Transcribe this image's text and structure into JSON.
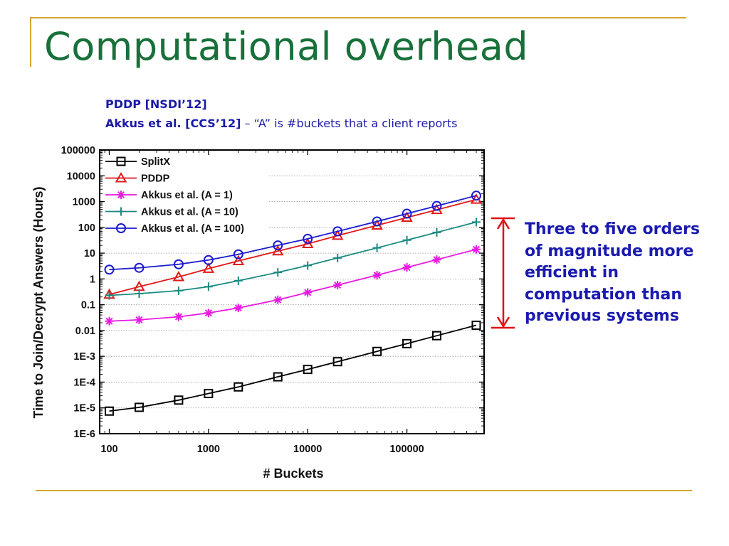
{
  "slide": {
    "title": "Computational overhead",
    "ref1": {
      "name": "PDDP [NSDI’12]"
    },
    "ref2": {
      "name": "Akkus et al. [CCS’12]",
      "note": " – “A” is #buckets that a client reports"
    },
    "callout": {
      "lines": [
        "Three to five orders",
        "of magnitude more",
        "efficient in",
        "computation than",
        "previous systems"
      ]
    }
  },
  "colors": {
    "title": "#18703a",
    "frame": "#d6a72e",
    "text_blue": "#1a1aa6",
    "arrow": "#e01010"
  },
  "chart_data": {
    "type": "line",
    "xlabel": "# Buckets",
    "ylabel": "Time to Join/Decrypt Answers (Hours)",
    "x_scale": "log",
    "y_scale": "log",
    "xlim": [
      80,
      600000
    ],
    "ylim": [
      1e-06,
      100000
    ],
    "x_ticks": [
      {
        "value": 100,
        "label": "100"
      },
      {
        "value": 1000,
        "label": "1000"
      },
      {
        "value": 10000,
        "label": "10000"
      },
      {
        "value": 100000,
        "label": "100000"
      }
    ],
    "y_ticks": [
      {
        "value": 100000,
        "label": "100000"
      },
      {
        "value": 10000,
        "label": "10000"
      },
      {
        "value": 1000,
        "label": "1000"
      },
      {
        "value": 100,
        "label": "100"
      },
      {
        "value": 10,
        "label": "10"
      },
      {
        "value": 1,
        "label": "1"
      },
      {
        "value": 0.1,
        "label": "0.1"
      },
      {
        "value": 0.01,
        "label": "0.01"
      },
      {
        "value": 0.001,
        "label": "1E-3"
      },
      {
        "value": 0.0001,
        "label": "1E-4"
      },
      {
        "value": 1e-05,
        "label": "1E-5"
      },
      {
        "value": 1e-06,
        "label": "1E-6"
      }
    ],
    "grid": "horizontal dotted",
    "legend_position": "top-left",
    "x": [
      100,
      200,
      500,
      1000,
      2000,
      5000,
      10000,
      20000,
      50000,
      100000,
      200000,
      500000
    ],
    "series": [
      {
        "name": "SplitX",
        "color": "#000000",
        "marker": "square",
        "values": [
          7.5e-06,
          1.05e-05,
          2e-05,
          3.6e-05,
          6.5e-05,
          0.00016,
          0.00031,
          0.00062,
          0.00155,
          0.0031,
          0.0063,
          0.016
        ]
      },
      {
        "name": "PDDP",
        "color": "#e01a1a",
        "marker": "triangle",
        "values": [
          0.25,
          0.5,
          1.2,
          2.5,
          5,
          12,
          23,
          48,
          120,
          240,
          480,
          1200
        ]
      },
      {
        "name": "Akkus et al. (A = 1)",
        "color": "#e81ae0",
        "marker": "asterisk",
        "values": [
          0.023,
          0.026,
          0.034,
          0.048,
          0.075,
          0.155,
          0.3,
          0.58,
          1.4,
          2.8,
          5.6,
          14
        ]
      },
      {
        "name": "Akkus et al. (A = 10)",
        "color": "#1a8a80",
        "marker": "plus",
        "values": [
          0.23,
          0.27,
          0.35,
          0.5,
          0.85,
          1.8,
          3.3,
          6.5,
          16,
          32,
          64,
          160
        ]
      },
      {
        "name": "Akkus et al. (A = 100)",
        "color": "#1a1ad0",
        "marker": "circle",
        "values": [
          2.3,
          2.7,
          3.7,
          5.4,
          9,
          20,
          36,
          70,
          170,
          340,
          680,
          1700
        ]
      }
    ]
  }
}
